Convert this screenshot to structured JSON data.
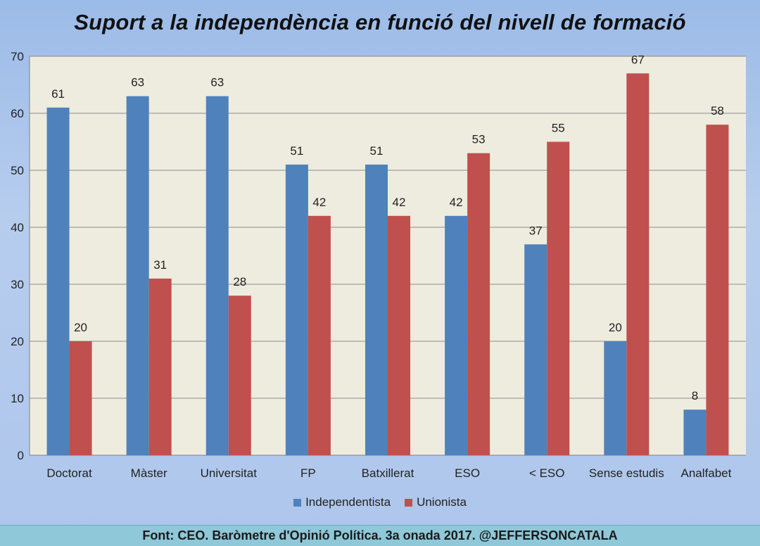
{
  "title": "Suport a la independència en funció del nivell de formació",
  "footer": "Font: CEO. Baròmetre d'Opinió Política. 3a onada 2017. @JEFFERSONCATALA",
  "colors": {
    "independentista": "#4f81bd",
    "unionista": "#c0504d",
    "plot_bg": "#eeecdf",
    "grid": "#8c8c8c"
  },
  "chart_data": {
    "type": "bar",
    "title": "Suport a la independència en funció del nivell de formació",
    "categories": [
      "Doctorat",
      "Màster",
      "Universitat",
      "FP",
      "Batxillerat",
      "ESO",
      "< ESO",
      "Sense estudis",
      "Analfabet"
    ],
    "series": [
      {
        "name": "Independentista",
        "values": [
          61,
          63,
          63,
          51,
          51,
          42,
          37,
          20,
          8
        ]
      },
      {
        "name": "Unionista",
        "values": [
          20,
          31,
          28,
          42,
          42,
          53,
          55,
          67,
          58
        ]
      }
    ],
    "ylim": [
      0,
      70
    ],
    "yticks": [
      "0",
      "10",
      "20",
      "30",
      "40",
      "50",
      "60",
      "70"
    ],
    "grid": true,
    "legend": "bottom"
  }
}
